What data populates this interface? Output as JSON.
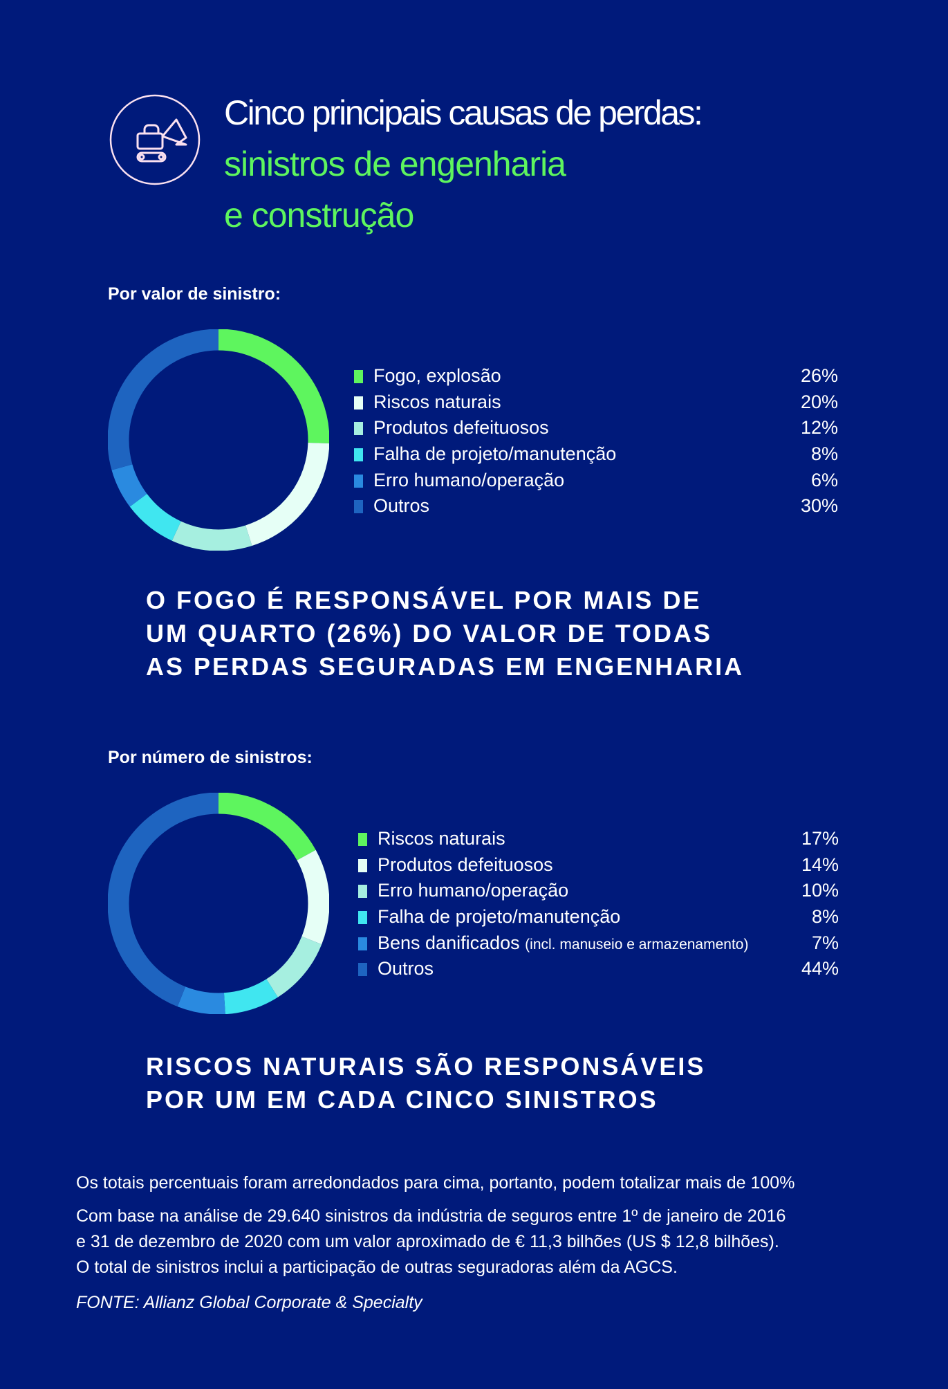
{
  "header": {
    "title_line1": "Cinco principais causas de perdas:",
    "title_line2": "sinistros de engenharia",
    "title_line3": "e construção",
    "icon": "excavator-icon"
  },
  "chart_data": [
    {
      "type": "pie",
      "title": "Por valor de sinistro:",
      "categories": [
        "Fogo, explosão",
        "Riscos naturais",
        "Produtos defeituosos",
        "Falha de projeto/manutenção",
        "Erro humano/operação",
        "Outros"
      ],
      "values": [
        26,
        20,
        12,
        8,
        6,
        30
      ],
      "labels": [
        "26%",
        "20%",
        "12%",
        "8%",
        "6%",
        "30%"
      ],
      "colors": [
        "#5ef55e",
        "#e6fff6",
        "#a6efe0",
        "#40e6f0",
        "#2a8ae0",
        "#1e64c0"
      ],
      "legend": "right"
    },
    {
      "type": "pie",
      "title": "Por número de sinistros:",
      "categories": [
        "Riscos naturais",
        "Produtos defeituosos",
        "Erro humano/operação",
        "Falha de projeto/manutenção",
        "Bens danificados",
        "Outros"
      ],
      "category_notes": [
        "",
        "",
        "",
        "",
        "(incl. manuseio e armazenamento)",
        ""
      ],
      "values": [
        17,
        14,
        10,
        8,
        7,
        44
      ],
      "labels": [
        "17%",
        "14%",
        "10%",
        "8%",
        "7%",
        "44%"
      ],
      "colors": [
        "#5ef55e",
        "#e6fff6",
        "#a6efe0",
        "#40e6f0",
        "#2a8ae0",
        "#1e64c0"
      ],
      "legend": "right"
    }
  ],
  "headline1": [
    "O FOGO É RESPONSÁVEL POR MAIS DE",
    "UM QUARTO (26%) DO VALOR DE TODAS",
    "AS PERDAS SEGURADAS EM ENGENHARIA"
  ],
  "headline2": [
    "RISCOS NATURAIS SÃO RESPONSÁVEIS",
    "POR UM EM CADA CINCO SINISTROS"
  ],
  "footer": {
    "note": "Os totais percentuais foram arredondados para cima, portanto, podem totalizar mais de 100%",
    "basis": [
      "Com base na análise de 29.640 sinistros da indústria de seguros entre 1º de janeiro de 2016",
      "e 31 de dezembro de 2020 com um valor aproximado de € 11,3 bilhões (US $ 12,8 bilhões).",
      "O total de sinistros inclui a participação de outras seguradoras além da AGCS."
    ],
    "source": "FONTE: Allianz Global Corporate & Specialty"
  }
}
